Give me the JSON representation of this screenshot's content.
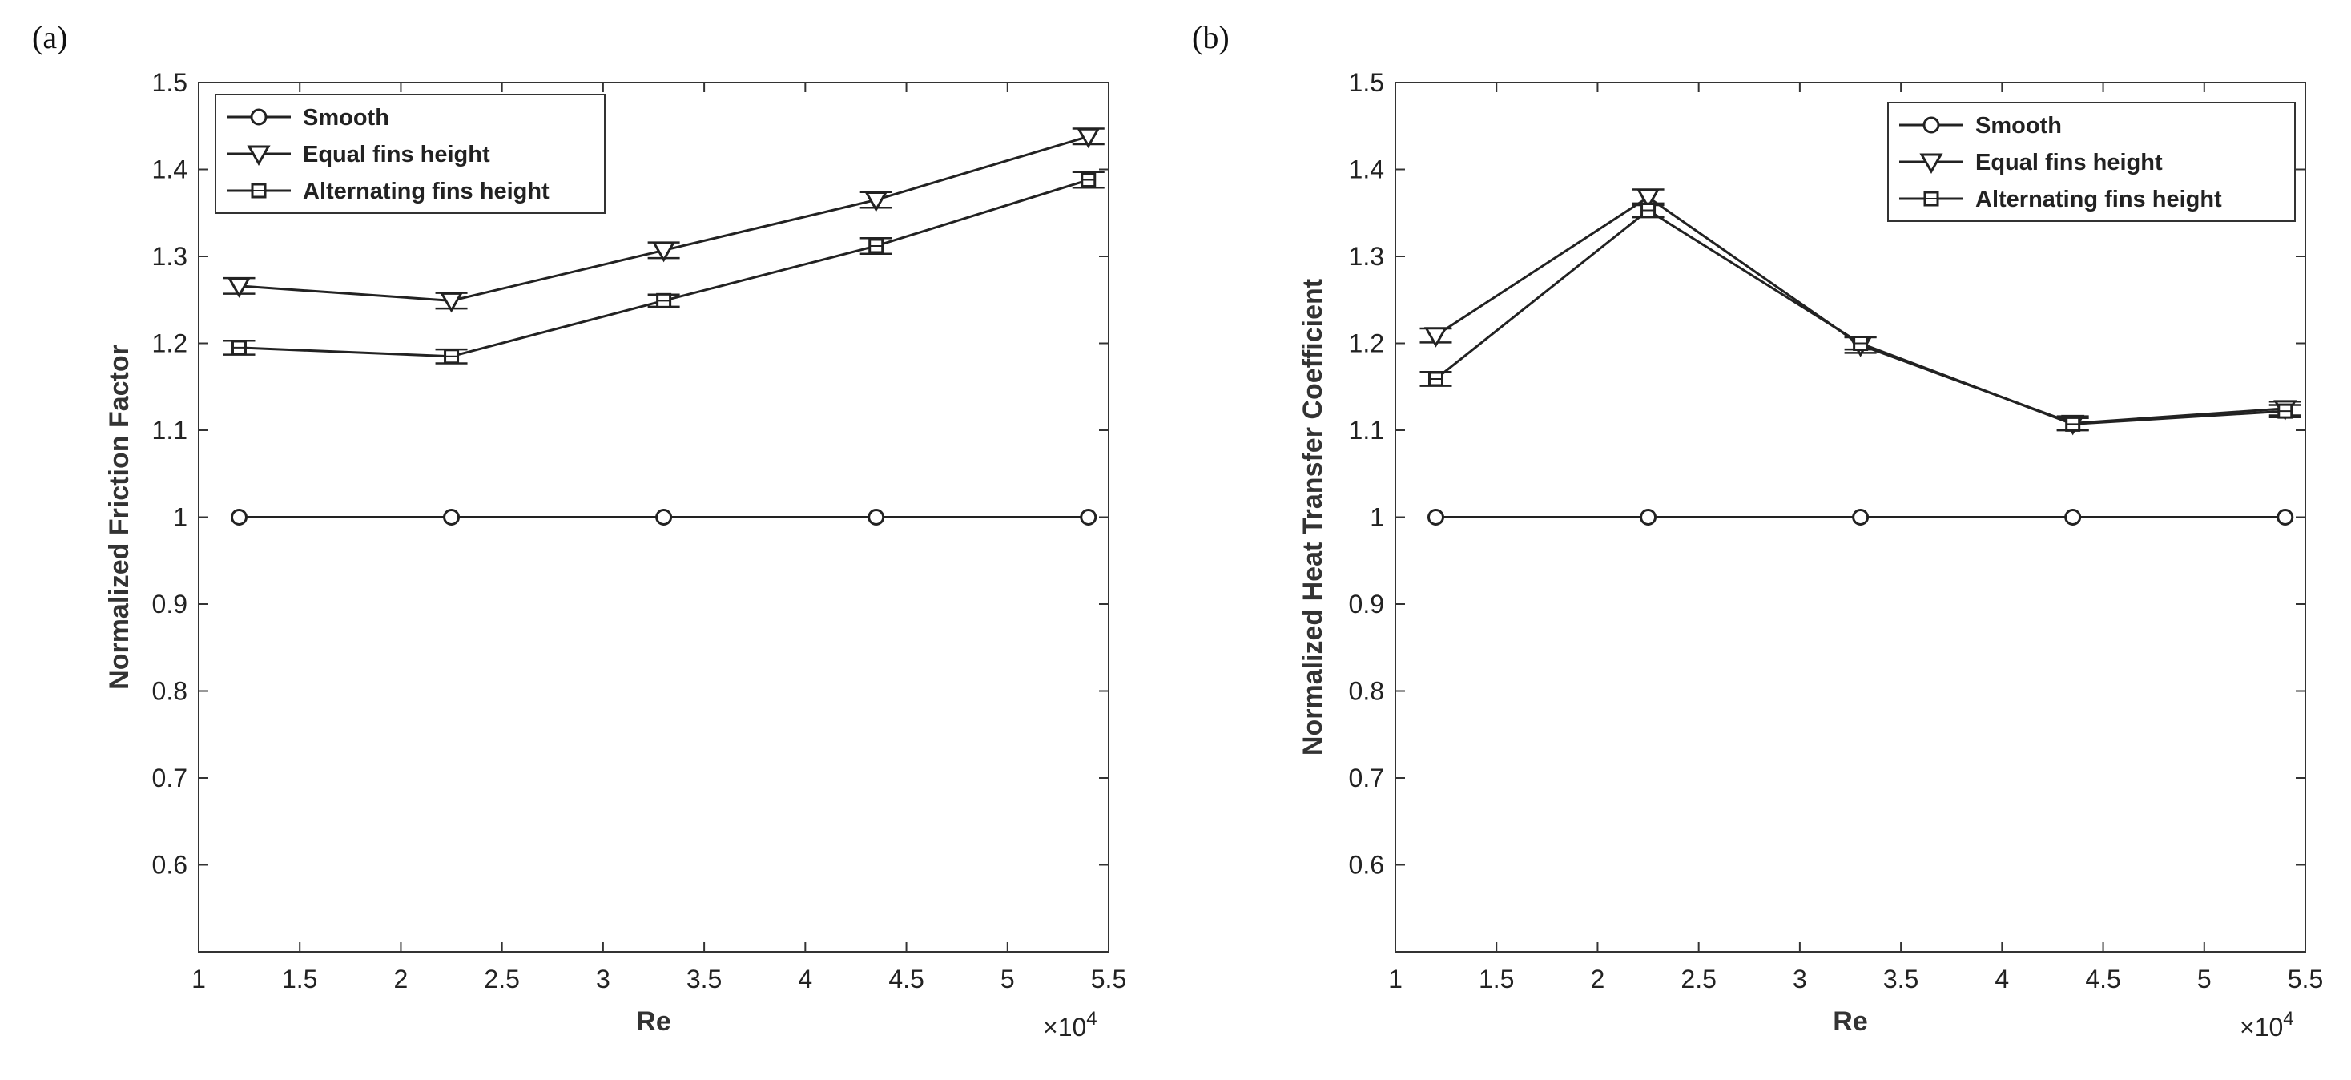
{
  "chart_data": [
    {
      "panel_label": "(a)",
      "type": "line",
      "ylabel": "Normalized Friction Factor",
      "xlabel": "Re",
      "x_multiplier": "×10",
      "x_multiplier_exp": "4",
      "xlim": [
        1,
        5.5
      ],
      "ylim": [
        0.5,
        1.5
      ],
      "xticks": [
        "1",
        "1.5",
        "2",
        "2.5",
        "3",
        "3.5",
        "4",
        "4.5",
        "5",
        "5.5"
      ],
      "yticks": [
        "0.6",
        "0.7",
        "0.8",
        "0.9",
        "1",
        "1.1",
        "1.2",
        "1.3",
        "1.4",
        "1.5"
      ],
      "x": [
        1.2,
        2.25,
        3.3,
        4.35,
        5.4
      ],
      "legend_position": "top-left",
      "series": [
        {
          "name": "Smooth",
          "marker": "circle",
          "values": [
            1.0,
            1.0,
            1.0,
            1.0,
            1.0
          ],
          "errors": [
            0,
            0,
            0,
            0,
            0
          ]
        },
        {
          "name": "Equal fins height",
          "marker": "triangle-down",
          "values": [
            1.266,
            1.249,
            1.307,
            1.365,
            1.438
          ],
          "errors": [
            0.009,
            0.009,
            0.009,
            0.009,
            0.009
          ]
        },
        {
          "name": "Alternating fins height",
          "marker": "square",
          "values": [
            1.195,
            1.185,
            1.249,
            1.312,
            1.388
          ],
          "errors": [
            0.008,
            0.008,
            0.007,
            0.009,
            0.009
          ]
        }
      ]
    },
    {
      "panel_label": "(b)",
      "type": "line",
      "ylabel": "Normalized Heat Transfer Coefficient",
      "xlabel": "Re",
      "x_multiplier": "×10",
      "x_multiplier_exp": "4",
      "xlim": [
        1,
        5.5
      ],
      "ylim": [
        0.5,
        1.5
      ],
      "xticks": [
        "1",
        "1.5",
        "2",
        "2.5",
        "3",
        "3.5",
        "4",
        "4.5",
        "5",
        "5.5"
      ],
      "yticks": [
        "0.6",
        "0.7",
        "0.8",
        "0.9",
        "1",
        "1.1",
        "1.2",
        "1.3",
        "1.4",
        "1.5"
      ],
      "x": [
        1.2,
        2.25,
        3.3,
        4.35,
        5.4
      ],
      "legend_position": "top-right",
      "series": [
        {
          "name": "Smooth",
          "marker": "circle",
          "values": [
            1.0,
            1.0,
            1.0,
            1.0,
            1.0
          ],
          "errors": [
            0,
            0,
            0,
            0,
            0
          ]
        },
        {
          "name": "Equal fins height",
          "marker": "triangle-down",
          "values": [
            1.209,
            1.368,
            1.198,
            1.108,
            1.125
          ],
          "errors": [
            0.008,
            0.009,
            0.009,
            0.008,
            0.008
          ]
        },
        {
          "name": "Alternating fins height",
          "marker": "square",
          "values": [
            1.159,
            1.353,
            1.2,
            1.107,
            1.122
          ],
          "errors": [
            0.008,
            0.008,
            0.007,
            0.007,
            0.007
          ]
        }
      ]
    }
  ]
}
